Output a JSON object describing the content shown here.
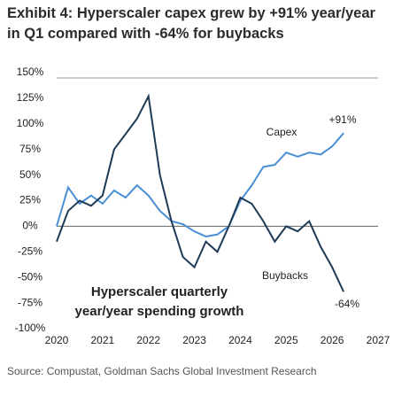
{
  "chart_data": {
    "type": "line",
    "title": "Exhibit 4: Hyperscaler capex grew by +91% year/year in Q1 compared with -64% for buybacks",
    "source": "Source: Compustat, Goldman Sachs Global Investment Research",
    "annotations": [
      "Capex",
      "+91%",
      "Buybacks",
      "-64%",
      "Hyperscaler quarterly",
      "year/year spending growth"
    ],
    "xlim": [
      2020,
      2027
    ],
    "xticks": [
      2020,
      2021,
      2022,
      2023,
      2024,
      2025,
      2026,
      2027
    ],
    "ylim": [
      -100,
      150
    ],
    "yticks": [
      {
        "value": 150,
        "label": "150%"
      },
      {
        "value": 125,
        "label": "125%"
      },
      {
        "value": 100,
        "label": "100%"
      },
      {
        "value": 75,
        "label": "75%"
      },
      {
        "value": 50,
        "label": "50%"
      },
      {
        "value": 25,
        "label": "25%"
      },
      {
        "value": 0,
        "label": "0%"
      },
      {
        "value": -25,
        "label": "-25%"
      },
      {
        "value": -50,
        "label": "-50%"
      },
      {
        "value": -75,
        "label": "-75%"
      },
      {
        "value": -100,
        "label": "-100%"
      }
    ],
    "x": [
      2020,
      2020.25,
      2020.5,
      2020.75,
      2021,
      2021.25,
      2021.5,
      2021.75,
      2022,
      2022.25,
      2022.5,
      2022.75,
      2023,
      2023.25,
      2023.5,
      2023.75,
      2024,
      2024.25,
      2024.5,
      2024.75,
      2025,
      2025.25,
      2025.5,
      2025.75,
      2026,
      2026.25
    ],
    "series": [
      {
        "name": "Capex",
        "color": "#4a8fd6",
        "values": [
          0,
          38,
          22,
          30,
          22,
          35,
          28,
          40,
          30,
          15,
          5,
          2,
          -5,
          -10,
          -8,
          0,
          25,
          40,
          58,
          60,
          72,
          68,
          72,
          70,
          78,
          91
        ]
      },
      {
        "name": "Buybacks",
        "color": "#1e3a55",
        "values": [
          -15,
          15,
          25,
          20,
          30,
          75,
          90,
          105,
          127,
          50,
          5,
          -30,
          -40,
          -15,
          -25,
          0,
          28,
          22,
          5,
          -15,
          0,
          -5,
          5,
          -20,
          -40,
          -64
        ]
      }
    ]
  }
}
